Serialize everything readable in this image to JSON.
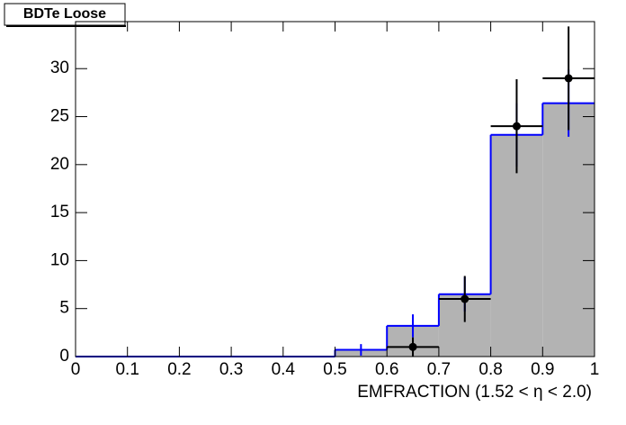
{
  "chart_data": {
    "type": "histogram",
    "title": "BDTe Loose",
    "xlabel": "EMFRACTION (1.52 <  η < 2.0)",
    "bins": [
      0,
      0.1,
      0.2,
      0.3,
      0.4,
      0.5,
      0.6,
      0.7,
      0.8,
      0.9,
      1
    ],
    "series": [
      {
        "color": "#b3b3b3",
        "edge_color": "#0000ff",
        "values": [
          0,
          0,
          0,
          0,
          0,
          0.7,
          3.2,
          6.5,
          23.1,
          26.4
        ],
        "errors": [
          0,
          0,
          0,
          0,
          0,
          0.6,
          1.2,
          1.8,
          3.3,
          3.5
        ]
      },
      {
        "color": "#000000",
        "values": [
          null,
          null,
          null,
          null,
          null,
          null,
          1,
          6,
          24,
          29
        ],
        "errors": [
          null,
          null,
          null,
          null,
          null,
          null,
          1,
          2.4,
          4.9,
          5.4
        ]
      }
    ],
    "xlim": [
      0,
      1
    ],
    "ylim": [
      0,
      34.9
    ],
    "xticks": [
      0,
      0.1,
      0.2,
      0.3,
      0.4,
      0.5,
      0.6,
      0.7,
      0.8,
      0.9,
      1
    ],
    "yticks": [
      0,
      5,
      10,
      15,
      20,
      25,
      30
    ]
  }
}
